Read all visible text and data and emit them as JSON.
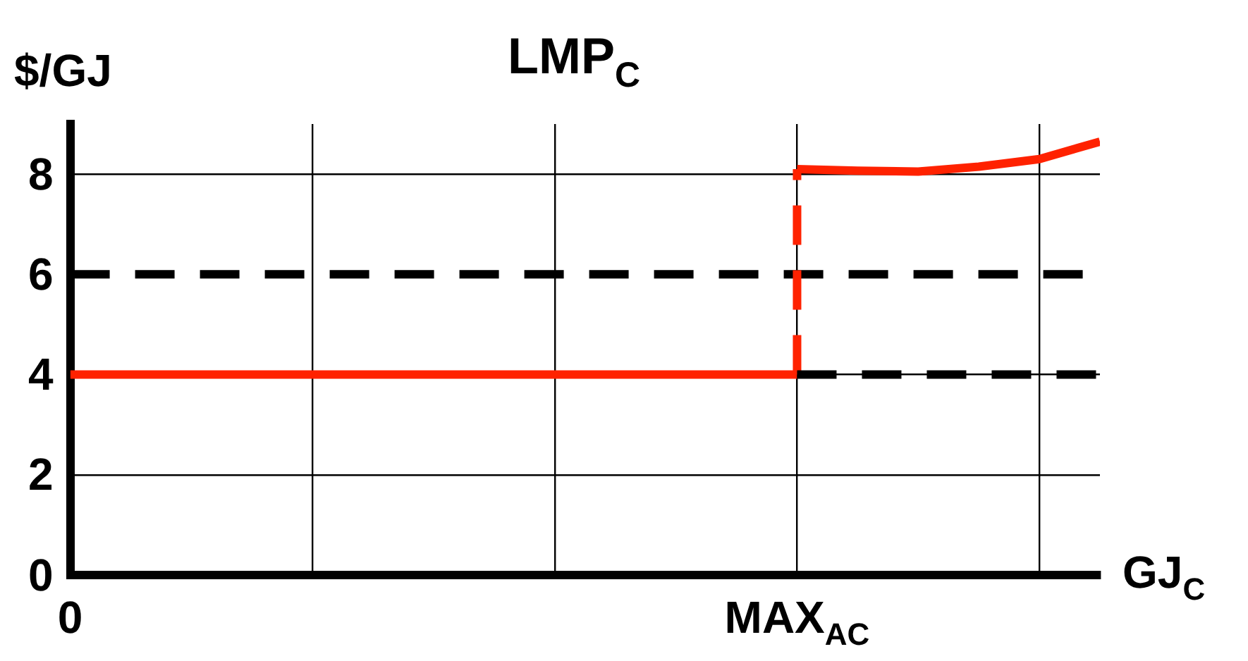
{
  "chart_data": {
    "type": "line",
    "title": "LMP$_{C}$",
    "ylabel": "$/GJ",
    "xlabel": "GJ$_{C}$",
    "categories": [
      "0",
      null,
      null,
      null,
      null,
      null,
      null,
      null,
      null,
      null,
      null,
      null,
      "MAX$_{AC}$",
      null,
      null,
      null,
      null,
      null
    ],
    "ylim": [
      0,
      9
    ],
    "yticks": [
      0,
      2,
      4,
      6,
      8
    ],
    "grid": true,
    "legend": false,
    "marker": "none",
    "ref_lines": [
      {
        "axis": "y",
        "value": 6,
        "color": "#000000",
        "line_style": "dashed"
      }
    ],
    "series": [
      {
        "color": "#000000",
        "line_style": "dashed",
        "values": [
          null,
          null,
          null,
          null,
          null,
          null,
          null,
          null,
          null,
          null,
          null,
          null,
          4,
          4,
          4,
          4,
          4,
          4
        ]
      },
      {
        "color": "#ff2200",
        "line_style": "solid",
        "values": [
          4,
          4,
          4,
          4,
          4,
          4,
          4,
          4,
          4,
          4,
          4,
          4,
          4,
          null,
          null,
          null,
          null,
          null
        ]
      },
      {
        "color": "#ff2200",
        "line_style": "dashed",
        "x": [
          "MAX$_{AC}$",
          "MAX$_{AC}$"
        ],
        "values": [
          4,
          8.1
        ]
      },
      {
        "color": "#ff2200",
        "line_style": "solid",
        "values": [
          null,
          null,
          null,
          null,
          null,
          null,
          null,
          null,
          null,
          null,
          null,
          null,
          8.1,
          8.07,
          8.05,
          8.15,
          8.3,
          8.65
        ]
      }
    ]
  }
}
